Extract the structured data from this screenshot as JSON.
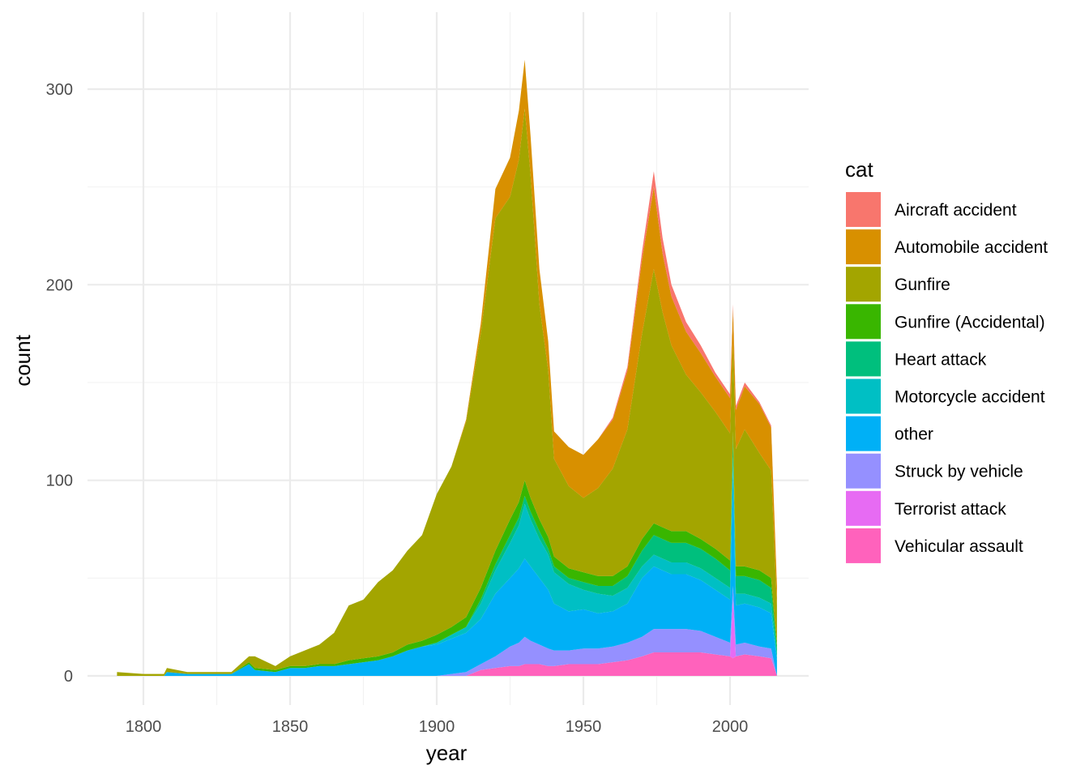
{
  "chart_data": {
    "type": "area",
    "stacked": true,
    "xlabel": "year",
    "ylabel": "count",
    "xlim": [
      1790,
      2016
    ],
    "ylim": [
      -12,
      330
    ],
    "x_ticks": [
      1800,
      1850,
      1900,
      1950,
      2000
    ],
    "y_ticks": [
      0,
      100,
      200,
      300
    ],
    "grid": true,
    "legend": {
      "title": "cat",
      "position": "right",
      "entries": [
        {
          "name": "Aircraft accident",
          "color": "#F8766D"
        },
        {
          "name": "Automobile accident",
          "color": "#D89000"
        },
        {
          "name": "Gunfire",
          "color": "#A3A500"
        },
        {
          "name": "Gunfire (Accidental)",
          "color": "#39B600"
        },
        {
          "name": "Heart attack",
          "color": "#00BF7D"
        },
        {
          "name": "Motorcycle accident",
          "color": "#00BFC4"
        },
        {
          "name": "other",
          "color": "#00B0F6"
        },
        {
          "name": "Struck by vehicle",
          "color": "#9590FF"
        },
        {
          "name": "Terrorist attack",
          "color": "#E76BF3"
        },
        {
          "name": "Vehicular assault",
          "color": "#FF62BC"
        }
      ]
    },
    "stack_order_bottom_to_top": [
      "Vehicular assault",
      "Terrorist attack",
      "Struck by vehicle",
      "other",
      "Motorcycle accident",
      "Heart attack",
      "Gunfire (Accidental)",
      "Gunfire",
      "Automobile accident",
      "Aircraft accident"
    ],
    "x": [
      1791,
      1800,
      1807,
      1808,
      1815,
      1825,
      1830,
      1836,
      1838,
      1845,
      1850,
      1855,
      1860,
      1865,
      1870,
      1875,
      1880,
      1885,
      1890,
      1895,
      1900,
      1905,
      1910,
      1915,
      1920,
      1925,
      1928,
      1930,
      1932,
      1935,
      1938,
      1940,
      1945,
      1950,
      1955,
      1960,
      1965,
      1970,
      1974,
      1977,
      1980,
      1985,
      1990,
      1995,
      2000,
      2001,
      2002,
      2005,
      2010,
      2014,
      2016
    ],
    "series": [
      {
        "name": "Vehicular assault",
        "values": [
          0,
          0,
          0,
          0,
          0,
          0,
          0,
          0,
          0,
          0,
          0,
          0,
          0,
          0,
          0,
          0,
          0,
          0,
          0,
          0,
          0,
          0,
          0,
          3,
          4,
          5,
          5,
          6,
          6,
          6,
          5,
          5,
          6,
          6,
          6,
          7,
          8,
          10,
          12,
          12,
          12,
          12,
          12,
          11,
          10,
          9,
          10,
          11,
          10,
          9,
          0
        ]
      },
      {
        "name": "Terrorist attack",
        "values": [
          0,
          0,
          0,
          0,
          0,
          0,
          0,
          0,
          0,
          0,
          0,
          0,
          0,
          0,
          0,
          0,
          0,
          0,
          0,
          0,
          0,
          0,
          0,
          0,
          0,
          0,
          0,
          0,
          0,
          0,
          0,
          0,
          0,
          0,
          0,
          0,
          0,
          0,
          0,
          0,
          0,
          0,
          0,
          0,
          0,
          30,
          0,
          0,
          0,
          0,
          0
        ]
      },
      {
        "name": "Struck by vehicle",
        "values": [
          0,
          0,
          0,
          0,
          0,
          0,
          0,
          0,
          0,
          0,
          0,
          0,
          0,
          0,
          0,
          0,
          0,
          0,
          0,
          0,
          0,
          1,
          2,
          3,
          6,
          10,
          12,
          14,
          12,
          10,
          9,
          8,
          7,
          8,
          8,
          8,
          9,
          10,
          12,
          12,
          12,
          12,
          11,
          9,
          7,
          7,
          6,
          6,
          5,
          5,
          0
        ]
      },
      {
        "name": "other",
        "values": [
          0,
          0,
          0,
          2,
          1,
          1,
          1,
          6,
          3,
          2,
          4,
          4,
          5,
          5,
          6,
          7,
          8,
          10,
          13,
          15,
          16,
          18,
          20,
          23,
          32,
          35,
          38,
          40,
          38,
          34,
          30,
          24,
          20,
          20,
          18,
          18,
          20,
          30,
          32,
          30,
          28,
          28,
          26,
          24,
          22,
          60,
          20,
          20,
          20,
          18,
          8
        ]
      },
      {
        "name": "Motorcycle accident",
        "values": [
          0,
          0,
          0,
          0,
          0,
          0,
          0,
          0,
          0,
          0,
          0,
          0,
          0,
          0,
          0,
          0,
          0,
          0,
          0,
          0,
          1,
          2,
          3,
          8,
          12,
          18,
          22,
          28,
          24,
          20,
          18,
          16,
          14,
          10,
          10,
          8,
          8,
          6,
          6,
          6,
          6,
          6,
          6,
          6,
          6,
          6,
          6,
          5,
          5,
          5,
          2
        ]
      },
      {
        "name": "Heart attack",
        "values": [
          0,
          0,
          0,
          0,
          0,
          0,
          0,
          0,
          0,
          0,
          0,
          0,
          0,
          0,
          0,
          0,
          0,
          0,
          0,
          0,
          0,
          0,
          0,
          2,
          3,
          4,
          4,
          4,
          4,
          4,
          3,
          3,
          3,
          4,
          4,
          5,
          6,
          8,
          10,
          10,
          10,
          10,
          10,
          10,
          9,
          8,
          9,
          9,
          9,
          8,
          4
        ]
      },
      {
        "name": "Gunfire (Accidental)",
        "values": [
          0,
          0,
          0,
          0,
          0,
          0,
          0,
          1,
          1,
          1,
          1,
          1,
          1,
          1,
          2,
          2,
          2,
          2,
          3,
          3,
          4,
          4,
          5,
          6,
          7,
          8,
          8,
          8,
          7,
          6,
          6,
          5,
          5,
          5,
          5,
          5,
          5,
          6,
          6,
          6,
          6,
          6,
          5,
          5,
          5,
          5,
          5,
          5,
          5,
          5,
          2
        ]
      },
      {
        "name": "Gunfire",
        "values": [
          2,
          1,
          1,
          2,
          1,
          1,
          1,
          3,
          6,
          2,
          5,
          8,
          10,
          16,
          28,
          30,
          38,
          42,
          48,
          54,
          72,
          82,
          100,
          130,
          170,
          165,
          175,
          190,
          165,
          110,
          85,
          50,
          42,
          38,
          45,
          55,
          70,
          105,
          130,
          110,
          95,
          80,
          75,
          70,
          65,
          45,
          60,
          70,
          60,
          55,
          20
        ]
      },
      {
        "name": "Automobile accident",
        "values": [
          0,
          0,
          0,
          0,
          0,
          0,
          0,
          0,
          0,
          0,
          0,
          0,
          0,
          0,
          0,
          0,
          0,
          0,
          0,
          0,
          0,
          0,
          1,
          5,
          15,
          20,
          25,
          25,
          20,
          18,
          15,
          14,
          20,
          22,
          25,
          25,
          30,
          38,
          42,
          30,
          25,
          22,
          20,
          18,
          18,
          18,
          20,
          22,
          25,
          22,
          10
        ]
      },
      {
        "name": "Aircraft accident",
        "values": [
          0,
          0,
          0,
          0,
          0,
          0,
          0,
          0,
          0,
          0,
          0,
          0,
          0,
          0,
          0,
          0,
          0,
          0,
          0,
          0,
          0,
          0,
          0,
          0,
          0,
          0,
          0,
          0,
          0,
          0,
          0,
          0,
          0,
          0,
          0,
          1,
          2,
          4,
          8,
          8,
          6,
          5,
          4,
          2,
          2,
          2,
          2,
          2,
          1,
          1,
          0
        ]
      }
    ]
  }
}
